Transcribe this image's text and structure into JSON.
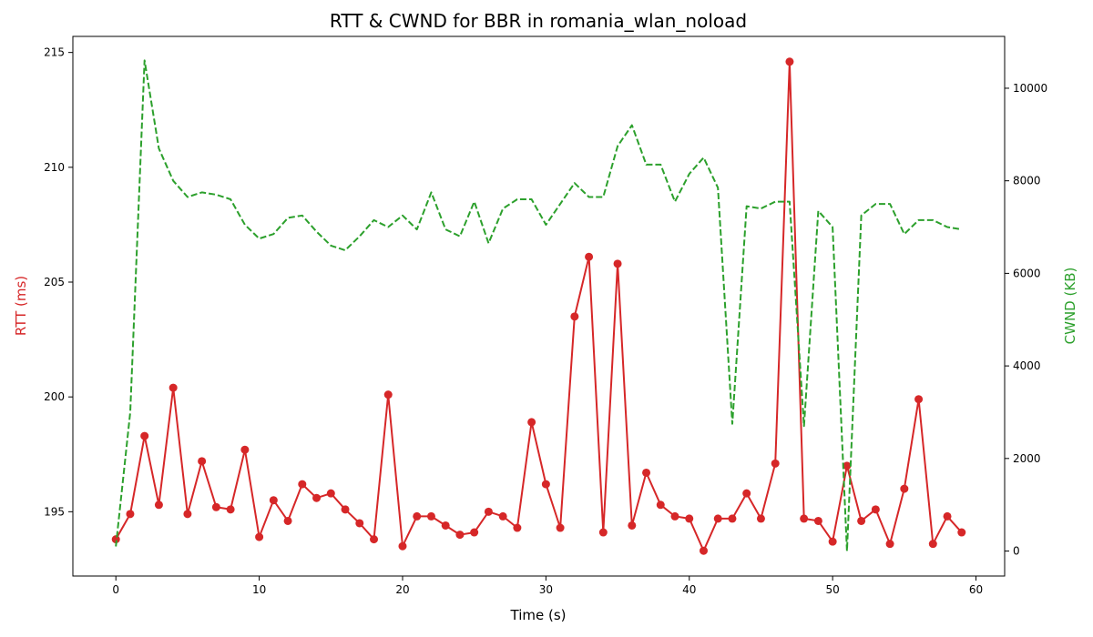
{
  "chart_data": {
    "type": "line",
    "title": "RTT & CWND for BBR in romania_wlan_noload",
    "xlabel": "Time (s)",
    "ylabel_left": "RTT (ms)",
    "ylabel_right": "CWND (KB)",
    "xlim": [
      -3,
      62
    ],
    "ylim_left": [
      192.2,
      215.7
    ],
    "ylim_right": [
      -540,
      11120
    ],
    "x_ticks": [
      0,
      10,
      20,
      30,
      40,
      50,
      60
    ],
    "y_left_ticks": [
      195,
      200,
      205,
      210,
      215
    ],
    "y_right_ticks": [
      0,
      2000,
      4000,
      6000,
      8000,
      10000
    ],
    "grid": false,
    "colors": {
      "rtt": "#d62728",
      "cwnd": "#2ca02c",
      "axis": "#000000"
    },
    "series": [
      {
        "key": "rtt",
        "axis": "left",
        "style": "solid-markers",
        "x": [
          0,
          1,
          2,
          3,
          4,
          5,
          6,
          7,
          8,
          9,
          10,
          11,
          12,
          13,
          14,
          15,
          16,
          17,
          18,
          19,
          20,
          21,
          22,
          23,
          24,
          25,
          26,
          27,
          28,
          29,
          30,
          31,
          32,
          33,
          34,
          35,
          36,
          37,
          38,
          39,
          40,
          41,
          42,
          43,
          44,
          45,
          46,
          47,
          48,
          49,
          50,
          51,
          52,
          53,
          54,
          55,
          56,
          57,
          58,
          59
        ],
        "values": [
          193.8,
          194.9,
          198.3,
          195.3,
          200.4,
          194.9,
          197.2,
          195.2,
          195.1,
          197.7,
          193.9,
          195.5,
          194.6,
          196.2,
          195.6,
          195.8,
          195.1,
          194.5,
          193.8,
          200.1,
          193.5,
          194.8,
          194.8,
          194.4,
          194.0,
          194.1,
          195.0,
          194.8,
          194.3,
          198.9,
          196.2,
          194.3,
          203.5,
          206.1,
          194.1,
          205.8,
          194.4,
          196.7,
          195.3,
          194.8,
          194.7,
          193.3,
          194.7,
          194.7,
          195.8,
          194.7,
          197.1,
          214.6,
          194.7,
          194.6,
          193.7,
          197.0,
          194.6,
          195.1,
          193.6,
          196.0,
          199.9,
          193.6,
          194.8,
          194.1
        ]
      },
      {
        "key": "cwnd",
        "axis": "right",
        "style": "dashed",
        "x": [
          0,
          1,
          2,
          3,
          4,
          5,
          6,
          7,
          8,
          9,
          10,
          11,
          12,
          13,
          14,
          15,
          16,
          17,
          18,
          19,
          20,
          21,
          22,
          23,
          24,
          25,
          26,
          27,
          28,
          29,
          30,
          31,
          32,
          33,
          34,
          35,
          36,
          37,
          38,
          39,
          40,
          41,
          42,
          43,
          44,
          45,
          46,
          47,
          48,
          49,
          50,
          51,
          52,
          53,
          54,
          55,
          56,
          57,
          58,
          59
        ],
        "values": [
          100,
          3000,
          10600,
          8700,
          8000,
          7650,
          7750,
          7700,
          7600,
          7050,
          6750,
          6850,
          7200,
          7250,
          6900,
          6600,
          6500,
          6800,
          7150,
          7000,
          7250,
          6950,
          7750,
          6950,
          6800,
          7550,
          6650,
          7400,
          7600,
          7600,
          7050,
          7500,
          7950,
          7650,
          7650,
          8750,
          9200,
          8350,
          8350,
          7550,
          8150,
          8500,
          7850,
          2750,
          7450,
          7400,
          7550,
          7550,
          2700,
          7350,
          7000,
          0,
          7250,
          7500,
          7500,
          6850,
          7150,
          7150,
          7000,
          6950
        ]
      }
    ]
  }
}
